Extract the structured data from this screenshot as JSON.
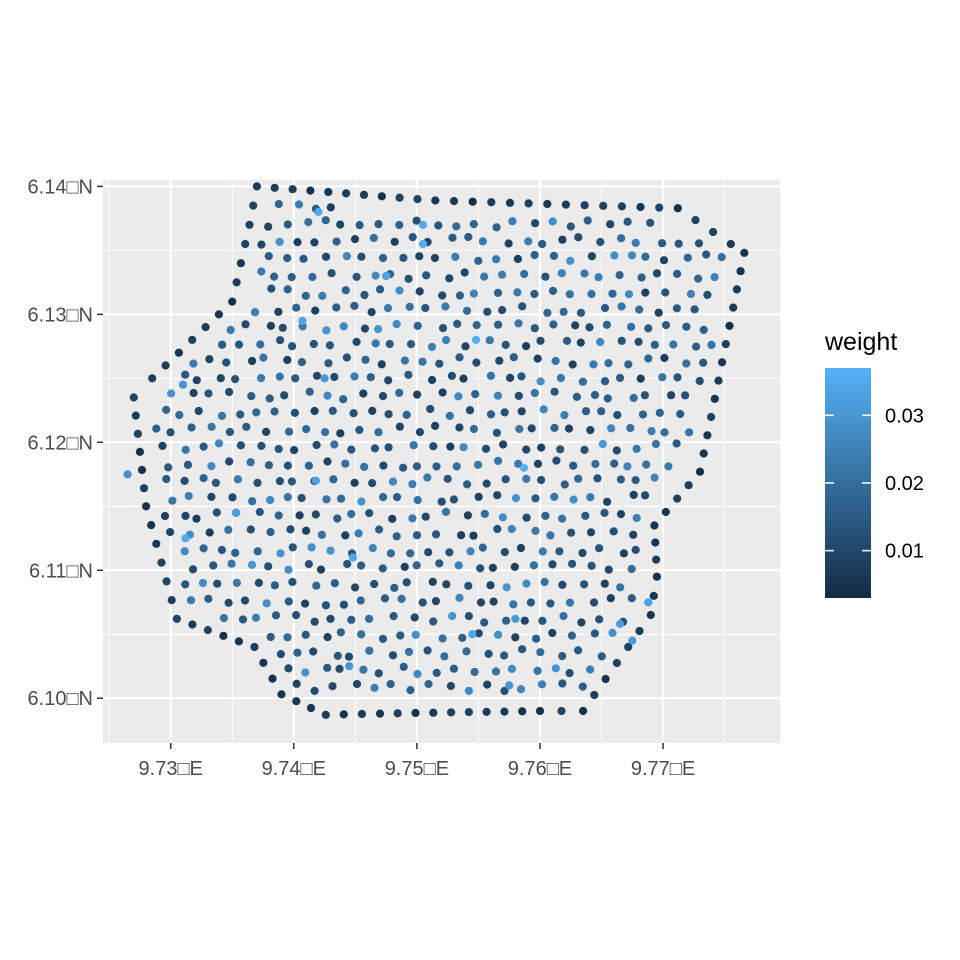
{
  "chart_data": {
    "type": "scatter",
    "title": "",
    "xlabel": "",
    "ylabel": "",
    "xlim": [
      9.7245,
      9.7795
    ],
    "ylim": [
      6.0965,
      6.1405
    ],
    "x_ticks": [
      9.73,
      9.74,
      9.75,
      9.76,
      9.77
    ],
    "x_tick_labels": [
      "9.73□E",
      "9.74□E",
      "9.75□E",
      "9.76□E",
      "9.77□E"
    ],
    "y_ticks": [
      6.1,
      6.11,
      6.12,
      6.13,
      6.14
    ],
    "y_tick_labels": [
      "6.10□N",
      "6.11□N",
      "6.12□N",
      "6.13□N",
      "6.14□N"
    ],
    "grid": true,
    "panel_background": "#ebebeb",
    "grid_color": "#ffffff",
    "legend": {
      "title": "weight",
      "placement": "right",
      "range": [
        0.003,
        0.037
      ],
      "breaks": [
        0.01,
        0.02,
        0.03
      ],
      "break_labels": [
        "0.01",
        "0.02",
        "0.03"
      ],
      "low_color": "#132b43",
      "high_color": "#56b1f7"
    },
    "boundary": [
      [
        9.737,
        6.14
      ],
      [
        9.7515,
        6.1389
      ],
      [
        9.7712,
        6.1383
      ],
      [
        9.7755,
        6.1355
      ],
      [
        9.7766,
        6.1348
      ],
      [
        9.773,
        6.1177
      ],
      [
        9.7693,
        6.1135
      ],
      [
        9.7695,
        6.1095
      ],
      [
        9.769,
        6.1065
      ],
      [
        9.7635,
        6.099
      ],
      [
        9.76,
        6.099
      ],
      [
        9.747,
        6.0988
      ],
      [
        9.7426,
        6.0987
      ],
      [
        9.739,
        6.1003
      ],
      [
        9.7368,
        6.104
      ],
      [
        9.7305,
        6.1062
      ],
      [
        9.728,
        6.115
      ],
      [
        9.727,
        6.1235
      ],
      [
        9.7285,
        6.125
      ],
      [
        9.735,
        6.131
      ],
      [
        9.7364,
        6.137
      ]
    ],
    "point_spacing": 0.00155,
    "highlights": [
      [
        9.742,
        6.138,
        0.035
      ],
      [
        9.7505,
        6.137,
        0.035
      ],
      [
        9.7505,
        6.1355,
        0.036
      ],
      [
        9.7475,
        6.133,
        0.033
      ],
      [
        9.7407,
        6.1295,
        0.034
      ],
      [
        9.7548,
        6.128,
        0.036
      ],
      [
        9.7425,
        6.125,
        0.031
      ],
      [
        9.731,
        6.1245,
        0.03
      ],
      [
        9.7587,
        6.118,
        0.037
      ],
      [
        9.7353,
        6.1145,
        0.032
      ],
      [
        9.7312,
        6.1125,
        0.035
      ],
      [
        9.7418,
        6.117,
        0.033
      ],
      [
        9.7448,
        6.111,
        0.034
      ],
      [
        9.7545,
        6.105,
        0.034
      ],
      [
        9.758,
        6.1062,
        0.031
      ],
      [
        9.7688,
        6.1075,
        0.033
      ],
      [
        9.7665,
        6.1058,
        0.032
      ],
      [
        9.7445,
        6.1025,
        0.03
      ],
      [
        9.7675,
        6.1045,
        0.031
      ],
      [
        9.7265,
        6.1175,
        0.029
      ],
      [
        9.7575,
        6.101,
        0.03
      ]
    ],
    "seed": 20240519
  }
}
